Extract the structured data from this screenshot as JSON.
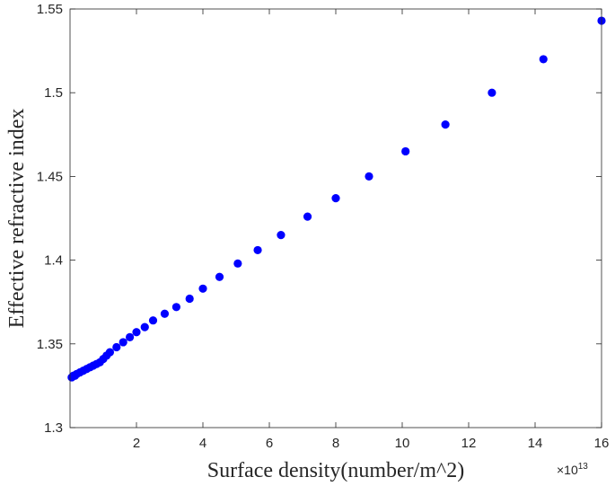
{
  "chart_data": {
    "type": "scatter",
    "title": "",
    "xlabel": "Surface density(number/m^2)",
    "ylabel": "Effective refractive index",
    "x_multiplier_base": "×10",
    "x_multiplier_exp": "13",
    "xlim": [
      0,
      16
    ],
    "ylim": [
      1.3,
      1.55
    ],
    "xticks": [
      2,
      4,
      6,
      8,
      10,
      12,
      14,
      16
    ],
    "xtick_labels": [
      "2",
      "4",
      "6",
      "8",
      "10",
      "12",
      "14",
      "16"
    ],
    "yticks": [
      1.3,
      1.35,
      1.4,
      1.45,
      1.5,
      1.55
    ],
    "ytick_labels": [
      "1.3",
      "1.35",
      "1.4",
      "1.45",
      "1.5",
      "1.55"
    ],
    "grid": false,
    "marker_color": "#0000ff",
    "series": [
      {
        "x": [
          0.05,
          0.1,
          0.15,
          0.2,
          0.3,
          0.4,
          0.5,
          0.6,
          0.7,
          0.8,
          0.9,
          1.0,
          1.1,
          1.2,
          1.4,
          1.6,
          1.8,
          2.0,
          2.25,
          2.5,
          2.85,
          3.2,
          3.6,
          4.0,
          4.5,
          5.05,
          5.65,
          6.35,
          7.15,
          8.0,
          9.0,
          10.1,
          11.3,
          12.7,
          14.25,
          16.0
        ],
        "y": [
          1.33,
          1.331,
          1.331,
          1.332,
          1.333,
          1.334,
          1.335,
          1.336,
          1.337,
          1.338,
          1.339,
          1.341,
          1.343,
          1.345,
          1.348,
          1.351,
          1.354,
          1.357,
          1.36,
          1.364,
          1.368,
          1.372,
          1.377,
          1.383,
          1.39,
          1.398,
          1.406,
          1.415,
          1.426,
          1.437,
          1.45,
          1.465,
          1.481,
          1.5,
          1.52,
          1.543
        ]
      }
    ]
  }
}
